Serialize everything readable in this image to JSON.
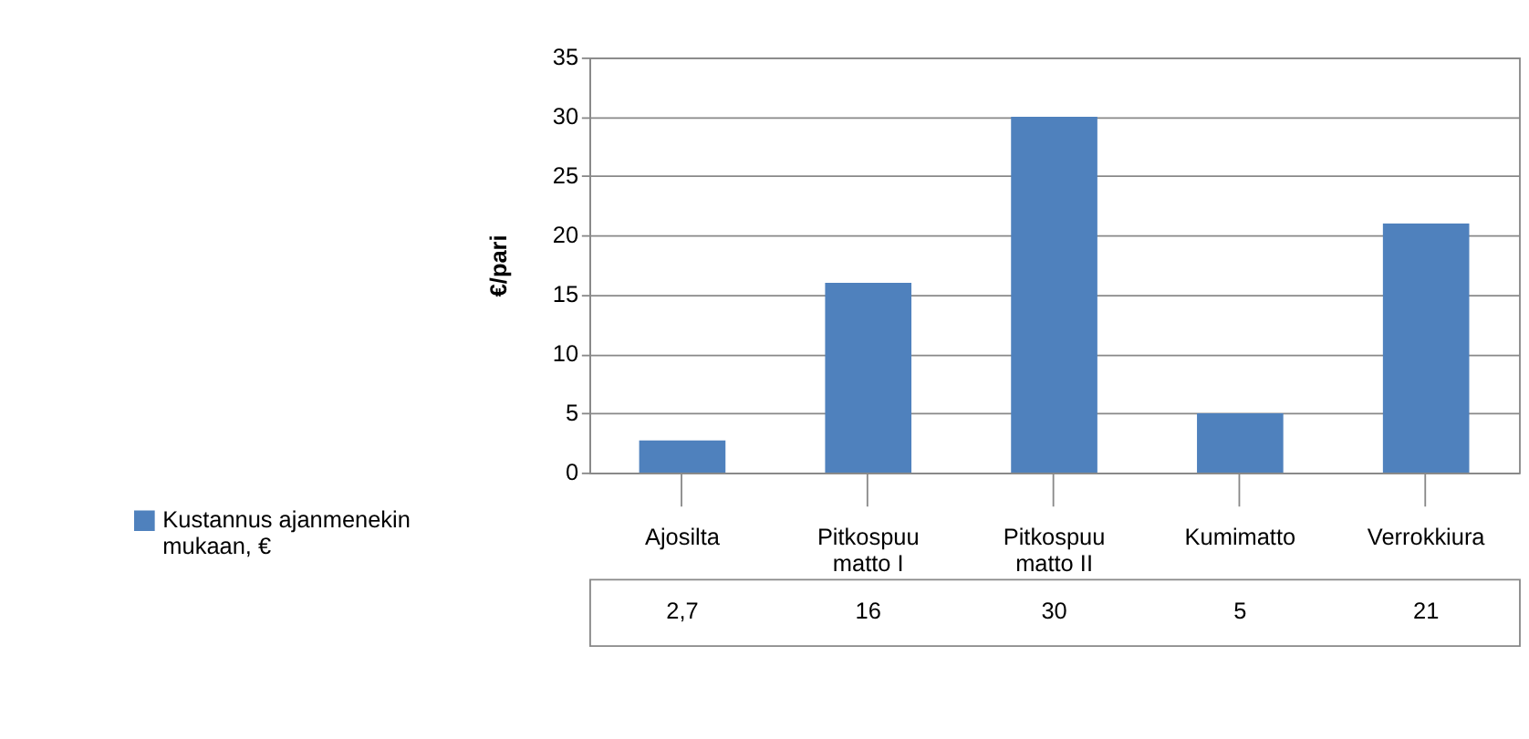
{
  "chart_data": {
    "type": "bar",
    "ylabel": "€/pari",
    "categories": [
      "Ajosilta",
      "Pitkospuu matto I",
      "Pitkospuu matto II",
      "Kumimatto",
      "Verrokkiura"
    ],
    "series": [
      {
        "name": "Kustannus ajanmenekin mukaan, €",
        "color": "#4f81bd",
        "values": [
          2.7,
          16,
          30,
          5,
          21
        ],
        "value_labels": [
          "2,7",
          "16",
          "30",
          "5",
          "21"
        ]
      }
    ],
    "ylim": [
      0,
      35
    ],
    "yticks": [
      0,
      5,
      10,
      15,
      20,
      25,
      30,
      35
    ],
    "grid": "y",
    "legend": "bottom"
  }
}
